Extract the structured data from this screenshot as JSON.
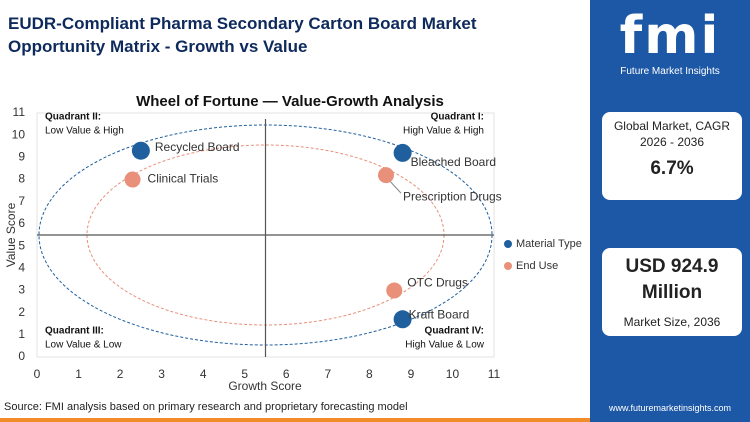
{
  "header": {
    "title": "EUDR-Compliant Pharma Secondary Carton Board Market Opportunity Matrix - Growth vs Value"
  },
  "brand": {
    "logo": "fmi",
    "name": "Future Market Insights"
  },
  "stats": [
    {
      "label": "Global Market, CAGR 2026 - 2036",
      "value": "6.7%"
    },
    {
      "label": "Market Size, 2036",
      "value": "USD 924.9 Million"
    }
  ],
  "footer": {
    "source": "Source: FMI analysis based on primary research and proprietary forecasting model",
    "website": "www.futuremarketinsights.com"
  },
  "chart_data": {
    "type": "scatter",
    "title": "Wheel of Fortune — Value-Growth Analysis",
    "x_label": "Growth Score",
    "y_label": "Value Score",
    "xlim": [
      0,
      11
    ],
    "ylim": [
      0,
      11
    ],
    "xticks": [
      0,
      1,
      2,
      3,
      4,
      5,
      6,
      7,
      8,
      9,
      10,
      11
    ],
    "yticks": [
      0,
      1,
      2,
      3,
      4,
      5,
      6,
      7,
      8,
      9,
      10,
      11
    ],
    "legend": "right",
    "quadrants": [
      {
        "title": "Quadrant II:",
        "subtitle": "Low Value & High",
        "corner": "top-left"
      },
      {
        "title": "Quadrant I:",
        "subtitle": "High Value & High",
        "corner": "top-right"
      },
      {
        "title": "Quadrant III:",
        "subtitle": "Low Value & Low",
        "corner": "bottom-left"
      },
      {
        "title": "Quadrant IV:",
        "subtitle": "High Value & Low",
        "corner": "bottom-right"
      }
    ],
    "series": [
      {
        "name": "Material Type",
        "color": "#1f5f9e",
        "labels": [
          "Recycled Board",
          "Bleached Board",
          "Kraft Board"
        ],
        "x": [
          2.5,
          8.8,
          8.8
        ],
        "values": [
          9.3,
          9.2,
          1.7
        ]
      },
      {
        "name": "End Use",
        "color": "#e8907a",
        "labels": [
          "Clinical Trials",
          "Prescription Drugs",
          "OTC Drugs"
        ],
        "x": [
          2.3,
          8.4,
          8.6
        ],
        "values": [
          8.0,
          8.2,
          3.0
        ]
      }
    ]
  }
}
